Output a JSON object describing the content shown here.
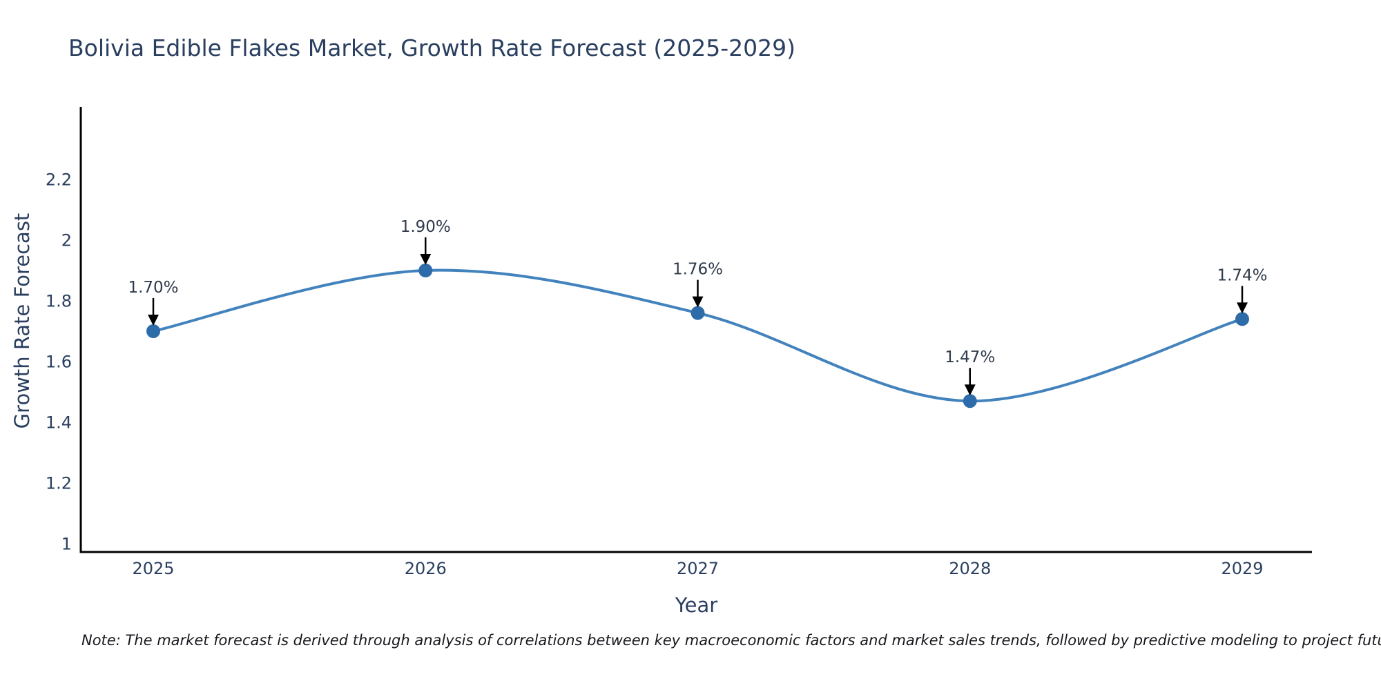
{
  "chart": {
    "title": "Bolivia Edible Flakes Market, Growth Rate Forecast (2025-2029)",
    "xlabel": "Year",
    "ylabel": "Growth Rate Forecast",
    "note": "Note: The market forecast is derived through analysis of correlations between key macroeconomic factors and market sales trends, followed by predictive modeling to project future sales",
    "colors": {
      "line": "#4383bd",
      "marker": "#2d6ca8",
      "axis": "#000000",
      "text": "#2a3f5f",
      "annotation_text": "#2f3b4c",
      "annotation_arrow": "#000000",
      "background": "#ffffff"
    }
  },
  "chart_data": {
    "type": "line",
    "line_shape": "spline",
    "x": [
      2025,
      2026,
      2027,
      2028,
      2029
    ],
    "y": [
      1.7,
      1.9,
      1.76,
      1.47,
      1.74
    ],
    "point_labels": [
      "1.70%",
      "1.90%",
      "1.76%",
      "1.47%",
      "1.74%"
    ],
    "title": "Bolivia Edible Flakes Market, Growth Rate Forecast (2025-2029)",
    "xlabel": "Year",
    "ylabel": "Growth Rate Forecast",
    "xticks": [
      2025,
      2026,
      2027,
      2028,
      2029
    ],
    "yticks": [
      1,
      1.2,
      1.4,
      1.6,
      1.8,
      2,
      2.2
    ],
    "ylim": [
      0.97,
      2.44
    ],
    "xlim": [
      2024.73,
      2029.26
    ],
    "grid": false,
    "legend": false,
    "annotations": "down-arrow-to-each-point"
  }
}
